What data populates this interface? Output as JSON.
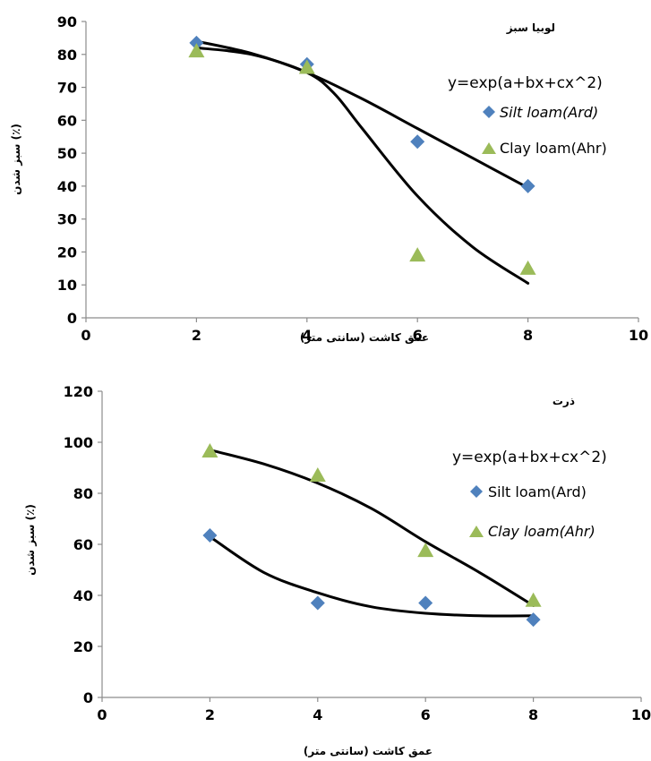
{
  "chart_data": [
    {
      "type": "scatter",
      "title": "لوبیا سبز",
      "xlabel": "عمق کاشت (سانتی متر)",
      "ylabel": "سبز شدن (٪)",
      "xlim": [
        0,
        10
      ],
      "ylim": [
        0,
        90
      ],
      "xticks": [
        "0",
        "2",
        "4",
        "6",
        "8",
        "10"
      ],
      "yticks": [
        "0",
        "10",
        "20",
        "30",
        "40",
        "50",
        "60",
        "70",
        "80",
        "90"
      ],
      "equation": "y=exp(a+bx+cx^2)",
      "series": [
        {
          "name": "Silt loam(Ard)",
          "marker": "diamond",
          "color": "#4f81bd",
          "x": [
            2,
            4,
            6,
            8
          ],
          "y": [
            83.5,
            77,
            53.5,
            40
          ],
          "fit_x": [
            2,
            3,
            4,
            5,
            6,
            7,
            8
          ],
          "fit_y": [
            84,
            80.3,
            74.5,
            66.5,
            57.5,
            48.5,
            39.5
          ]
        },
        {
          "name": "Clay loam(Ahr)",
          "marker": "triangle",
          "color": "#9bbb59",
          "x": [
            2,
            4,
            6,
            8
          ],
          "y": [
            81,
            76,
            19,
            15
          ],
          "fit_x": [
            2,
            3,
            4,
            4.5,
            5,
            6,
            7,
            8
          ],
          "fit_y": [
            82,
            80,
            74.5,
            68,
            57.5,
            37,
            21.5,
            10.5
          ]
        }
      ]
    },
    {
      "type": "scatter",
      "title": "ذرت",
      "xlabel": "عمق کاشت (سانتی متر)",
      "ylabel": "سبز شدن (٪)",
      "xlim": [
        0,
        10
      ],
      "ylim": [
        0,
        120
      ],
      "xticks": [
        "0",
        "2",
        "4",
        "6",
        "8",
        "10"
      ],
      "yticks": [
        "0",
        "20",
        "40",
        "60",
        "80",
        "100",
        "120"
      ],
      "equation": "y=exp(a+bx+cx^2)",
      "series": [
        {
          "name": "Silt loam(Ard)",
          "marker": "diamond",
          "color": "#4f81bd",
          "x": [
            2,
            4,
            6,
            8
          ],
          "y": [
            63.5,
            37,
            37,
            30.5
          ],
          "fit_x": [
            2,
            3,
            4,
            5,
            6,
            7,
            8
          ],
          "fit_y": [
            63,
            49,
            41,
            35.5,
            33,
            32,
            32
          ]
        },
        {
          "name": "Clay loam(Ahr)",
          "marker": "triangle",
          "color": "#9bbb59",
          "x": [
            2,
            4,
            6,
            8
          ],
          "y": [
            96.5,
            87,
            57.5,
            38
          ],
          "fit_x": [
            2,
            3,
            4,
            5,
            6,
            7,
            8
          ],
          "fit_y": [
            97,
            91.5,
            84,
            74,
            61,
            49,
            36
          ]
        }
      ]
    }
  ]
}
